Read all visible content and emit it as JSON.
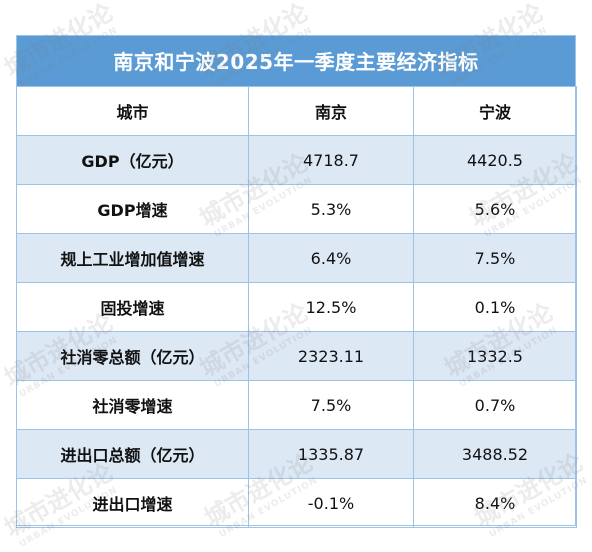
{
  "title": "南京和宁波2025年一季度主要经济指标",
  "columns": [
    "城市",
    "南京",
    "宁波"
  ],
  "rows": [
    {
      "label": "GDP（亿元）",
      "nanjing": "4718.7",
      "ningbo": "4420.5"
    },
    {
      "label": "GDP增速",
      "nanjing": "5.3%",
      "ningbo": "5.6%"
    },
    {
      "label": "规上工业增加值增速",
      "nanjing": "6.4%",
      "ningbo": "7.5%"
    },
    {
      "label": "固投增速",
      "nanjing": "12.5%",
      "ningbo": "0.1%"
    },
    {
      "label": "社消零总额（亿元）",
      "nanjing": "2323.11",
      "ningbo": "1332.5"
    },
    {
      "label": "社消零增速",
      "nanjing": "7.5%",
      "ningbo": "0.7%"
    },
    {
      "label": "进出口总额（亿元）",
      "nanjing": "1335.87",
      "ningbo": "3488.52"
    },
    {
      "label": "进出口增速",
      "nanjing": "-0.1%",
      "ningbo": "8.4%"
    }
  ],
  "watermark": {
    "text": "城市进化论",
    "subtext": "URBAN EVOLUTION"
  },
  "colors": {
    "header_bg": "#5b9bd5",
    "shade_row": "#dde8f5",
    "border": "#9dc3e6"
  }
}
